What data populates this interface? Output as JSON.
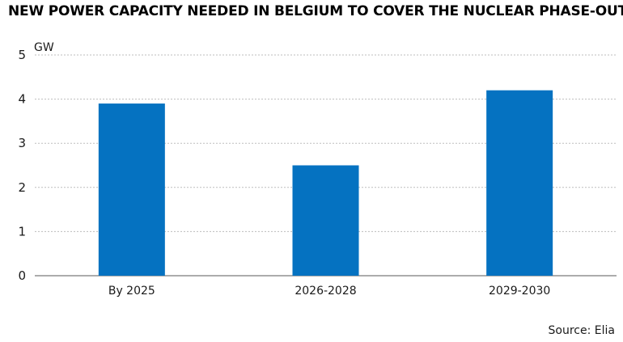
{
  "title": "NEW POWER CAPACITY NEEDED IN BELGIUM TO COVER THE NUCLEAR PHASE-OUT",
  "source": "Source: Elia",
  "colors": {
    "bar": "#0572c1",
    "grid": "#bdbdbd",
    "axis": "#595959"
  },
  "chart_data": {
    "type": "bar",
    "title": "NEW POWER CAPACITY NEEDED IN BELGIUM TO COVER THE NUCLEAR PHASE-OUT",
    "ylabel": "GW",
    "xlabel": "",
    "categories": [
      "By 2025",
      "2026-2028",
      "2029-2030"
    ],
    "values": [
      3.9,
      2.5,
      4.2
    ],
    "ylim": [
      0,
      5
    ],
    "yticks": [
      0,
      1,
      2,
      3,
      4,
      5
    ],
    "grid": true
  }
}
